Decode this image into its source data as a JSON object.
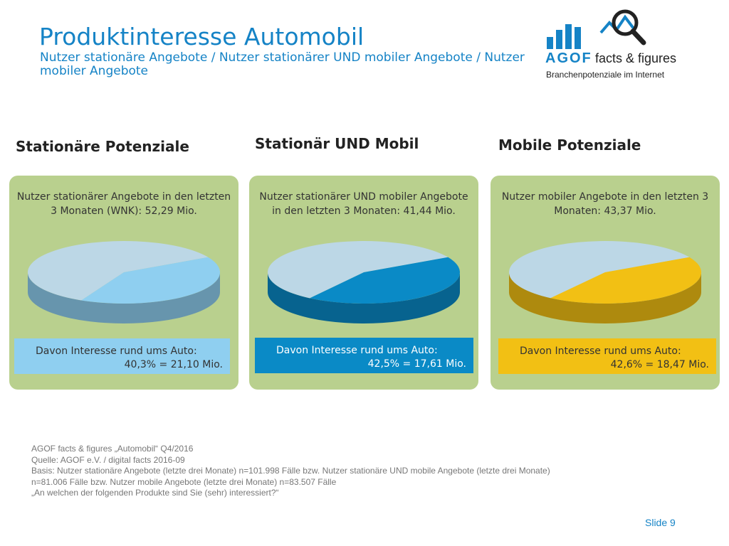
{
  "header": {
    "title": "Produktinteresse Automobil",
    "subtitle": "Nutzer stationäre Angebote / Nutzer stationärer UND mobiler Angebote / Nutzer mobiler Angebote"
  },
  "logo": {
    "word": "AGOF",
    "name": "facts & figures",
    "tagline": "Branchenpotenziale im Internet",
    "color": "#1583c6"
  },
  "colors": {
    "panel": "#b9d08e",
    "rest": "#bcd7e6"
  },
  "panels": [
    {
      "heading": "Stationäre Potenziale",
      "text": "Nutzer stationärer Angebote in den letzten 3 Monaten (WNK): 52,29 Mio.",
      "box_line1": "Davon Interesse rund ums Auto:",
      "box_line2": "40,3% = 21,10 Mio.",
      "color": "#8fcff0",
      "box_text_color": "#333333"
    },
    {
      "heading": "Stationär UND Mobil",
      "text": "Nutzer stationärer UND mobiler Angebote in den letzten 3 Monaten: 41,44 Mio.",
      "box_line1": "Davon Interesse rund ums Auto:",
      "box_line2": "42,5% = 17,61 Mio.",
      "color": "#0a8ac6",
      "box_text_color": "#ffffff"
    },
    {
      "heading": "Mobile Potenziale",
      "text": "Nutzer mobiler Angebote in den letzten 3 Monaten: 43,37 Mio.",
      "box_line1": "Davon Interesse rund ums Auto:",
      "box_line2": "42,6% = 18,47 Mio.",
      "color": "#f2c014",
      "box_text_color": "#333333"
    }
  ],
  "chart_data": [
    {
      "type": "pie",
      "title": "Stationäre Potenziale",
      "categories": [
        "Davon Interesse rund ums Auto",
        ""
      ],
      "values": [
        40.3,
        59.7
      ]
    },
    {
      "type": "pie",
      "title": "Stationär UND Mobil",
      "categories": [
        "Davon Interesse rund ums Auto",
        ""
      ],
      "values": [
        42.5,
        57.5
      ]
    },
    {
      "type": "pie",
      "title": "Mobile Potenziale",
      "categories": [
        "Davon Interesse rund ums Auto",
        ""
      ],
      "values": [
        42.6,
        57.4
      ]
    }
  ],
  "footnote": [
    "AGOF facts & figures „Automobil“ Q4/2016",
    "Quelle: AGOF e.V. / digital facts 2016-09",
    "Basis: Nutzer stationäre Angebote (letzte drei Monate) n=101.998 Fälle bzw. Nutzer stationäre UND mobile Angebote (letzte drei Monate)",
    "n=81.006 Fälle bzw. Nutzer mobile Angebote (letzte drei Monate) n=83.507 Fälle",
    "„An welchen der folgenden Produkte sind Sie (sehr) interessiert?“"
  ],
  "slide_label": "Slide 9"
}
